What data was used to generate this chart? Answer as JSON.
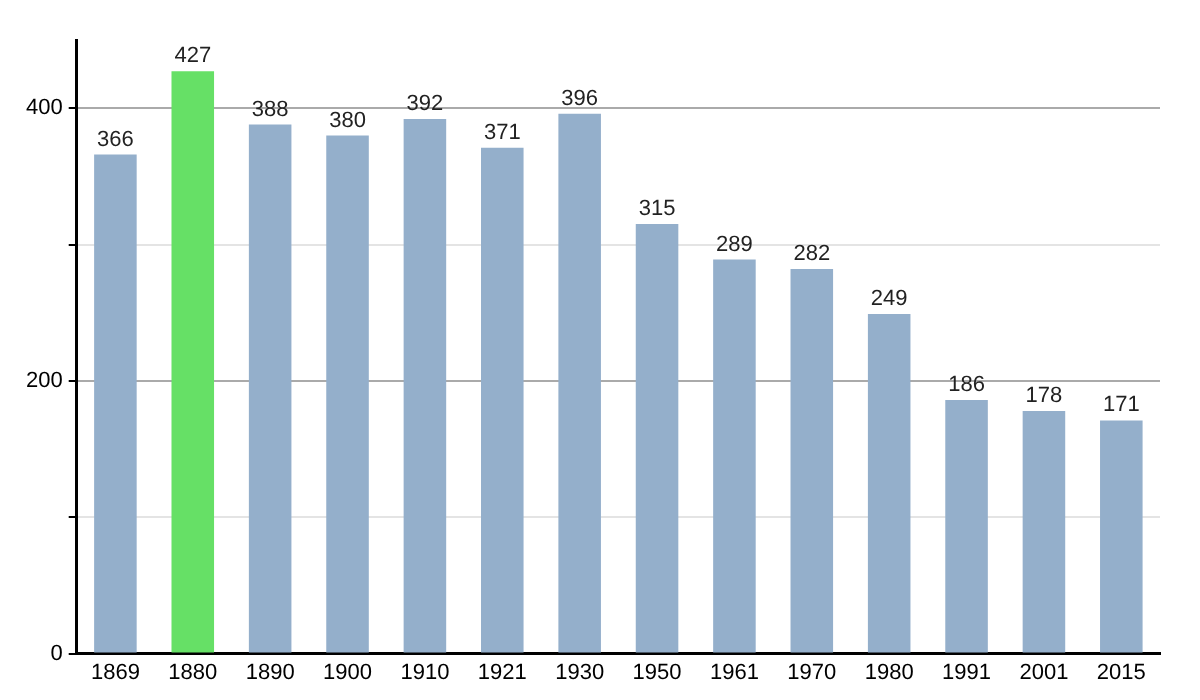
{
  "chart_data": {
    "type": "bar",
    "categories": [
      "1869",
      "1880",
      "1890",
      "1900",
      "1910",
      "1921",
      "1930",
      "1950",
      "1961",
      "1970",
      "1980",
      "1991",
      "2001",
      "2015"
    ],
    "values": [
      366,
      427,
      388,
      380,
      392,
      371,
      396,
      315,
      289,
      282,
      249,
      186,
      178,
      171
    ],
    "colors": [
      "#94afcb",
      "#66e066",
      "#94afcb",
      "#94afcb",
      "#94afcb",
      "#94afcb",
      "#94afcb",
      "#94afcb",
      "#94afcb",
      "#94afcb",
      "#94afcb",
      "#94afcb",
      "#94afcb",
      "#94afcb"
    ],
    "ylim": [
      0,
      450
    ],
    "yticks": [
      0,
      {
        "value": 100,
        "label": null
      },
      200,
      {
        "value": 300,
        "label": null
      },
      400
    ],
    "grid": "y",
    "data_labels": true,
    "legend": false
  }
}
